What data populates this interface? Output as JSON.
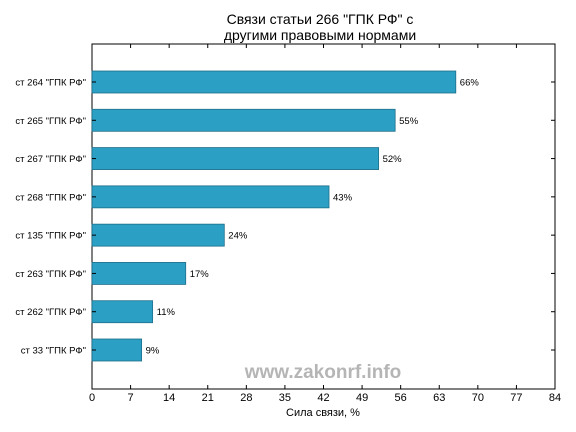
{
  "chart_data": {
    "type": "bar",
    "orientation": "horizontal",
    "title": [
      "Связи статьи 266 \"ГПК РФ\" с",
      "другими правовыми нормами"
    ],
    "xlabel": "Сила связи, %",
    "ylabel": "",
    "categories": [
      "ст 264 \"ГПК РФ\"",
      "ст 265 \"ГПК РФ\"",
      "ст 267 \"ГПК РФ\"",
      "ст 268 \"ГПК РФ\"",
      "ст 135 \"ГПК РФ\"",
      "ст 263 \"ГПК РФ\"",
      "ст 262 \"ГПК РФ\"",
      "ст 33 \"ГПК РФ\""
    ],
    "values": [
      66,
      55,
      52,
      43,
      24,
      17,
      11,
      9
    ],
    "value_labels": [
      "66%",
      "55%",
      "52%",
      "43%",
      "24%",
      "17%",
      "11%",
      "9%"
    ],
    "xlim": [
      0,
      84
    ],
    "xticks": [
      "0",
      "7",
      "14",
      "21",
      "28",
      "35",
      "42",
      "49",
      "56",
      "63",
      "70",
      "77",
      "84"
    ],
    "grid": false,
    "bar_color": "#2b9fc4",
    "bar_edge_color": "#1d6f8a"
  },
  "watermark": "www.zakonrf.info"
}
